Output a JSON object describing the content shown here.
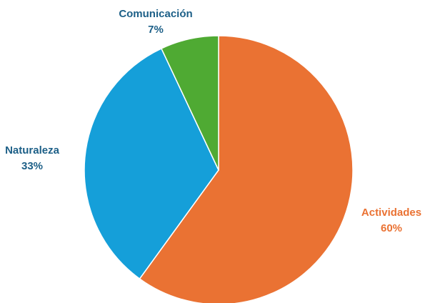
{
  "chart_data": {
    "type": "pie",
    "title": "",
    "categories": [
      "Actividades",
      "Naturaleza",
      "Comunicación"
    ],
    "values": [
      60,
      33,
      7
    ],
    "value_labels": [
      "60%",
      "33%",
      "7%"
    ],
    "colors": [
      "#EA7233",
      "#159FD9",
      "#4FAA33"
    ],
    "label_colors": [
      "#EA7233",
      "#1C5F87",
      "#1C5F87"
    ],
    "start": "12 o'clock, clockwise",
    "legend": "none"
  }
}
